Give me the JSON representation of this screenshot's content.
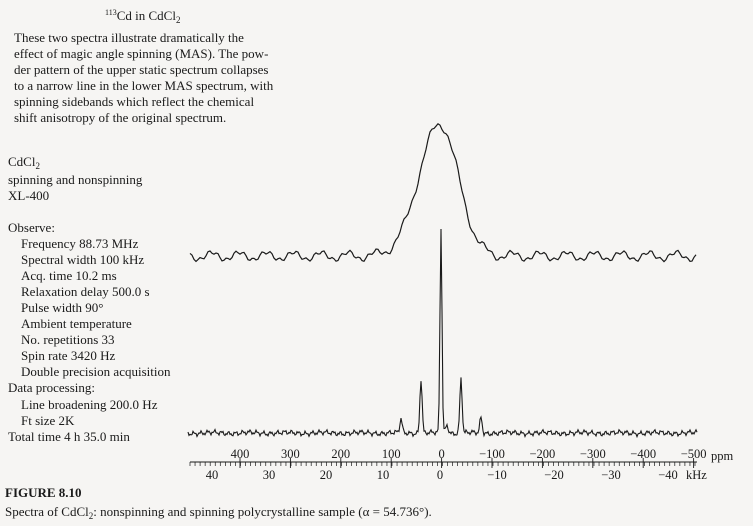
{
  "header": {
    "title_sup": "113",
    "title": "Cd in CdCl",
    "title_sub": "2"
  },
  "description": [
    "These two spectra illustrate dramatically the",
    "effect of magic angle spinning (MAS). The pow-",
    "der pattern of the upper static spectrum collapses",
    "to a narrow line in the lower MAS spectrum, with",
    "spinning sidebands which reflect the chemical",
    "shift anisotropy of the original spectrum."
  ],
  "sample": {
    "compound": "CdCl",
    "compound_sub": "2",
    "mode": "spinning and nonspinning",
    "instrument": "XL-400"
  },
  "observe": {
    "heading": "Observe:",
    "items": [
      "Frequency 88.73 MHz",
      "Spectral width 100 kHz",
      "Acq. time 10.2 ms",
      "Relaxation delay 500.0 s",
      "Pulse width 90°",
      "Ambient temperature",
      "No. repetitions 33",
      "Spin rate 3420 Hz",
      "Double precision acquisition"
    ]
  },
  "processing": {
    "heading": "Data processing:",
    "items": [
      "Line broadening 200.0 Hz",
      "Ft size 2K"
    ]
  },
  "total": "Total time 4 h 35.0 min",
  "axis": {
    "ppm_ticks": [
      "400",
      "300",
      "200",
      "100",
      "0",
      "−100",
      "−200",
      "−300",
      "−400",
      "−500"
    ],
    "ppm_unit": "ppm",
    "khz_ticks": [
      "40",
      "30",
      "20",
      "10",
      "0",
      "−10",
      "−20",
      "−30",
      "−40"
    ],
    "khz_unit": "kHz"
  },
  "caption": {
    "label": "FIGURE 8.10",
    "text_start": "Spectra of CdCl",
    "text_sub": "2",
    "text_end": ": nonspinning and spinning polycrystalline sample (α = 54.736°)."
  }
}
